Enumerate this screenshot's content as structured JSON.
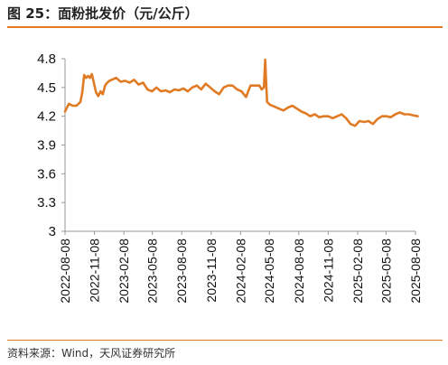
{
  "title": "图 25：面粉批发价（元/公斤）",
  "source": "资料来源：Wind，天风证券研究所",
  "colors": {
    "accent": "#e07b24",
    "line": "#e07b24",
    "axis": "#999999"
  },
  "chart_data": {
    "type": "line",
    "title": "",
    "xlabel": "",
    "ylabel": "",
    "ylim": [
      3,
      4.8
    ],
    "yticks": [
      "4.8",
      "4.5",
      "4.2",
      "3.9",
      "3.6",
      "3.3",
      "3"
    ],
    "xticks": [
      "2022-08-08",
      "2022-11-08",
      "2023-02-08",
      "2023-05-08",
      "2023-08-08",
      "2023-11-08",
      "2024-02-08",
      "2024-05-08",
      "2024-08-08",
      "2024-11-08",
      "2025-02-08",
      "2025-05-08",
      "2025-08-08"
    ],
    "grid": false,
    "series": [
      {
        "name": "",
        "x": [
          "2022-08-08",
          "2022-08-20",
          "2022-09-01",
          "2022-09-13",
          "2022-09-25",
          "2022-10-01",
          "2022-10-07",
          "2022-10-13",
          "2022-10-19",
          "2022-10-25",
          "2022-10-31",
          "2022-11-06",
          "2022-11-13",
          "2022-11-20",
          "2022-11-27",
          "2022-12-04",
          "2022-12-11",
          "2022-12-18",
          "2022-12-25",
          "2023-01-01",
          "2023-01-15",
          "2023-01-29",
          "2023-02-12",
          "2023-02-26",
          "2023-03-12",
          "2023-03-26",
          "2023-04-09",
          "2023-04-23",
          "2023-05-07",
          "2023-05-21",
          "2023-06-04",
          "2023-06-18",
          "2023-07-02",
          "2023-07-16",
          "2023-07-30",
          "2023-08-13",
          "2023-08-27",
          "2023-09-10",
          "2023-09-24",
          "2023-10-08",
          "2023-10-22",
          "2023-11-05",
          "2023-11-19",
          "2023-12-03",
          "2023-12-17",
          "2023-12-31",
          "2024-01-14",
          "2024-01-28",
          "2024-02-11",
          "2024-02-25",
          "2024-03-10",
          "2024-03-24",
          "2024-04-07",
          "2024-04-14",
          "2024-04-21",
          "2024-04-25",
          "2024-04-28",
          "2024-05-01",
          "2024-05-10",
          "2024-05-24",
          "2024-06-07",
          "2024-06-21",
          "2024-07-05",
          "2024-07-19",
          "2024-08-02",
          "2024-08-16",
          "2024-08-30",
          "2024-09-13",
          "2024-09-27",
          "2024-10-11",
          "2024-10-25",
          "2024-11-08",
          "2024-11-22",
          "2024-12-06",
          "2024-12-20",
          "2025-01-03",
          "2025-01-17",
          "2025-01-31",
          "2025-02-14",
          "2025-02-28",
          "2025-03-14",
          "2025-03-28",
          "2025-04-11",
          "2025-04-25",
          "2025-05-09",
          "2025-05-23",
          "2025-06-06",
          "2025-06-20",
          "2025-07-04",
          "2025-07-18",
          "2025-08-01",
          "2025-08-15"
        ],
        "y": [
          4.25,
          4.33,
          4.31,
          4.31,
          4.35,
          4.45,
          4.63,
          4.6,
          4.62,
          4.6,
          4.64,
          4.55,
          4.45,
          4.41,
          4.46,
          4.43,
          4.52,
          4.55,
          4.57,
          4.58,
          4.6,
          4.56,
          4.57,
          4.55,
          4.58,
          4.53,
          4.55,
          4.48,
          4.46,
          4.5,
          4.46,
          4.47,
          4.45,
          4.48,
          4.47,
          4.49,
          4.46,
          4.5,
          4.52,
          4.48,
          4.54,
          4.5,
          4.46,
          4.43,
          4.5,
          4.52,
          4.52,
          4.48,
          4.46,
          4.4,
          4.52,
          4.52,
          4.52,
          4.48,
          4.5,
          4.79,
          4.55,
          4.35,
          4.32,
          4.3,
          4.28,
          4.26,
          4.29,
          4.31,
          4.28,
          4.25,
          4.23,
          4.2,
          4.22,
          4.19,
          4.2,
          4.2,
          4.18,
          4.2,
          4.22,
          4.18,
          4.12,
          4.1,
          4.15,
          4.14,
          4.15,
          4.12,
          4.17,
          4.2,
          4.2,
          4.19,
          4.22,
          4.24,
          4.22,
          4.22,
          4.21,
          4.2
        ]
      }
    ]
  }
}
